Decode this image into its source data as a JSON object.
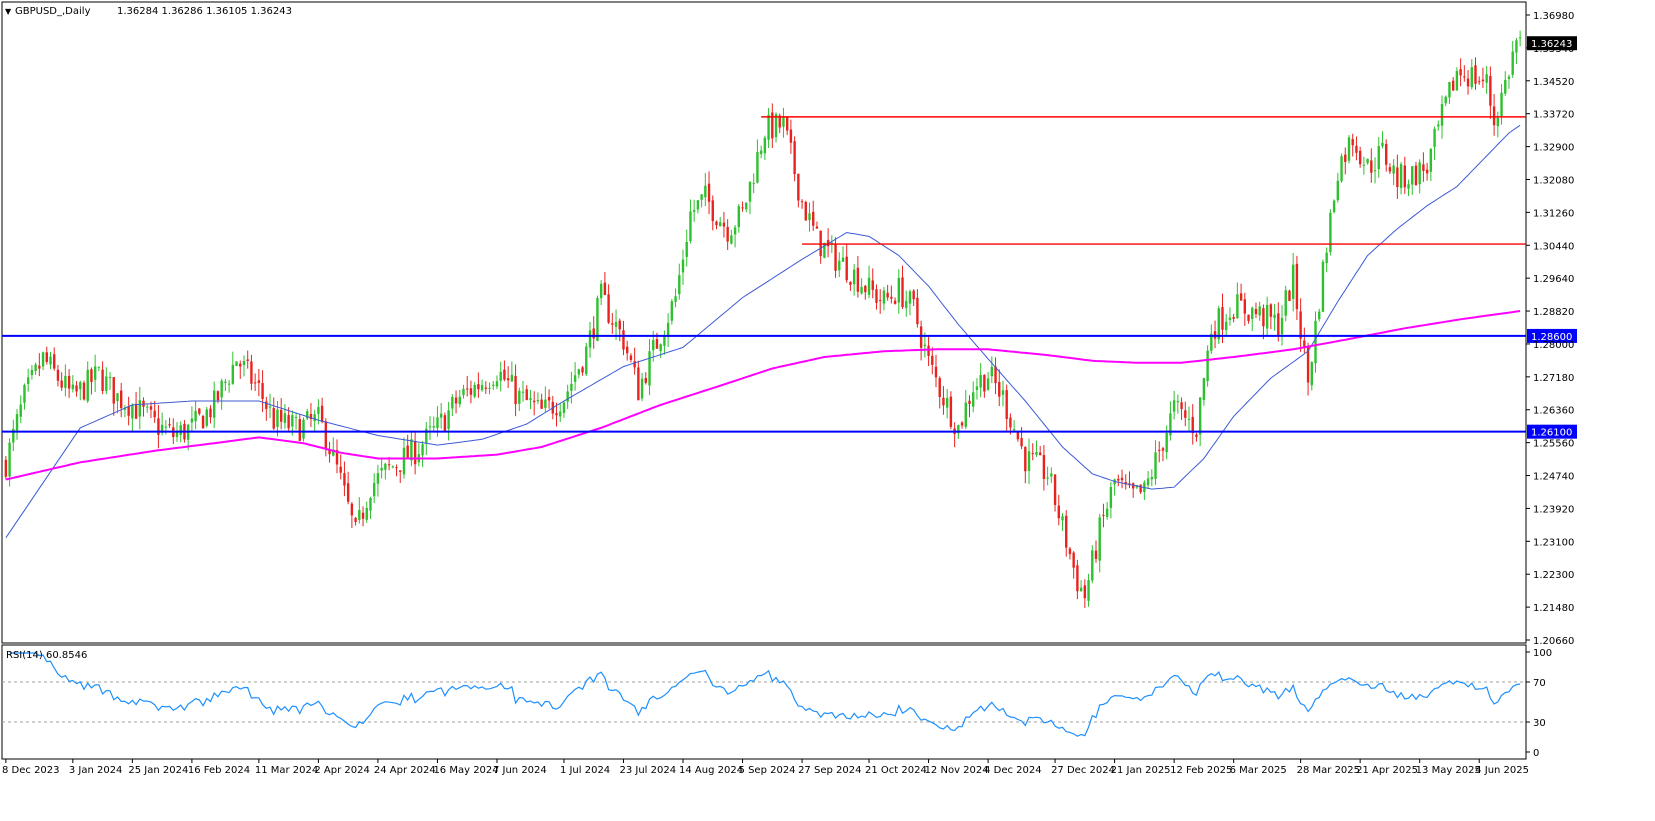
{
  "header": {
    "symbol_title": "GBPUSD_,Daily",
    "ohlc": "1.36284 1.36286 1.36105 1.36243",
    "rsi_title": "RSI(14) 60.8546"
  },
  "colors": {
    "bull": "#2ec02e",
    "bear": "#e8231f",
    "ma_fast": "#3d5ad6",
    "ma_slow": "#ff00ff",
    "resistance": "#ff0000",
    "support": "#0000ff",
    "rsi": "#1e90ff",
    "tag_bg": "#0000ff",
    "price_tag_bg": "#000000"
  },
  "chart_data": [
    {
      "type": "candlestick",
      "title": "GBPUSD_,Daily",
      "ylim": [
        1.2066,
        1.3698
      ],
      "y_ticks": [
        "1.36980",
        "1.35340",
        "1.34520",
        "1.33720",
        "1.32900",
        "1.32080",
        "1.31260",
        "1.30440",
        "1.29640",
        "1.28820",
        "1.28000",
        "1.27180",
        "1.26360",
        "1.25560",
        "1.24740",
        "1.23920",
        "1.23100",
        "1.22300",
        "1.21480",
        "1.20660"
      ],
      "x_ticks": [
        "8 Dec 2023",
        "3 Jan 2024",
        "25 Jan 2024",
        "16 Feb 2024",
        "11 Mar 2024",
        "2 Apr 2024",
        "24 Apr 2024",
        "16 May 2024",
        "7 Jun 2024",
        "1 Jul 2024",
        "23 Jul 2024",
        "14 Aug 2024",
        "5 Sep 2024",
        "27 Sep 2024",
        "21 Oct 2024",
        "12 Nov 2024",
        "4 Dec 2024",
        "27 Dec 2024",
        "21 Jan 2025",
        "12 Feb 2025",
        "6 Mar 2025",
        "28 Mar 2025",
        "21 Apr 2025",
        "13 May 2025",
        "4 Jun 2025"
      ],
      "x_ticks_bar_index": [
        0,
        18,
        34,
        50,
        68,
        84,
        100,
        116,
        132,
        150,
        166,
        182,
        198,
        214,
        232,
        248,
        264,
        282,
        298,
        314,
        330,
        348,
        364,
        380,
        396
      ],
      "bars_total": 408,
      "price_path": [
        [
          0,
          1.253
        ],
        [
          5,
          1.27
        ],
        [
          10,
          1.28
        ],
        [
          18,
          1.27
        ],
        [
          25,
          1.276
        ],
        [
          30,
          1.27
        ],
        [
          34,
          1.268
        ],
        [
          40,
          1.263
        ],
        [
          45,
          1.26
        ],
        [
          50,
          1.262
        ],
        [
          56,
          1.268
        ],
        [
          62,
          1.28
        ],
        [
          68,
          1.272
        ],
        [
          72,
          1.264
        ],
        [
          78,
          1.262
        ],
        [
          84,
          1.264
        ],
        [
          86,
          1.26
        ],
        [
          90,
          1.248
        ],
        [
          94,
          1.234
        ],
        [
          98,
          1.247
        ],
        [
          104,
          1.252
        ],
        [
          110,
          1.256
        ],
        [
          116,
          1.262
        ],
        [
          122,
          1.27
        ],
        [
          128,
          1.274
        ],
        [
          132,
          1.277
        ],
        [
          138,
          1.27
        ],
        [
          144,
          1.266
        ],
        [
          150,
          1.27
        ],
        [
          156,
          1.282
        ],
        [
          160,
          1.296
        ],
        [
          166,
          1.285
        ],
        [
          170,
          1.272
        ],
        [
          174,
          1.282
        ],
        [
          180,
          1.296
        ],
        [
          184,
          1.318
        ],
        [
          188,
          1.322
        ],
        [
          194,
          1.314
        ],
        [
          198,
          1.318
        ],
        [
          204,
          1.34
        ],
        [
          209,
          1.341
        ],
        [
          214,
          1.321
        ],
        [
          218,
          1.311
        ],
        [
          222,
          1.307
        ],
        [
          226,
          1.304
        ],
        [
          232,
          1.298
        ],
        [
          236,
          1.295
        ],
        [
          240,
          1.298
        ],
        [
          244,
          1.293
        ],
        [
          248,
          1.279
        ],
        [
          252,
          1.27
        ],
        [
          256,
          1.262
        ],
        [
          260,
          1.273
        ],
        [
          264,
          1.276
        ],
        [
          268,
          1.27
        ],
        [
          274,
          1.254
        ],
        [
          280,
          1.25
        ],
        [
          284,
          1.236
        ],
        [
          288,
          1.222
        ],
        [
          290,
          1.218
        ],
        [
          294,
          1.235
        ],
        [
          298,
          1.248
        ],
        [
          302,
          1.244
        ],
        [
          306,
          1.245
        ],
        [
          310,
          1.256
        ],
        [
          314,
          1.267
        ],
        [
          320,
          1.262
        ],
        [
          324,
          1.288
        ],
        [
          330,
          1.294
        ],
        [
          336,
          1.292
        ],
        [
          342,
          1.289
        ],
        [
          346,
          1.301
        ],
        [
          350,
          1.274
        ],
        [
          354,
          1.303
        ],
        [
          358,
          1.33
        ],
        [
          362,
          1.338
        ],
        [
          366,
          1.33
        ],
        [
          370,
          1.334
        ],
        [
          374,
          1.327
        ],
        [
          378,
          1.328
        ],
        [
          382,
          1.33
        ],
        [
          386,
          1.343
        ],
        [
          390,
          1.355
        ],
        [
          394,
          1.354
        ],
        [
          398,
          1.352
        ],
        [
          400,
          1.342
        ],
        [
          403,
          1.352
        ],
        [
          406,
          1.3628
        ],
        [
          407,
          1.3624
        ]
      ],
      "ma_fast": [
        [
          0,
          1.2333
        ],
        [
          20,
          1.262
        ],
        [
          34,
          1.268
        ],
        [
          50,
          1.269
        ],
        [
          68,
          1.269
        ],
        [
          84,
          1.264
        ],
        [
          100,
          1.26
        ],
        [
          116,
          1.2575
        ],
        [
          128,
          1.259
        ],
        [
          140,
          1.263
        ],
        [
          150,
          1.269
        ],
        [
          166,
          1.278
        ],
        [
          182,
          1.283
        ],
        [
          198,
          1.296
        ],
        [
          214,
          1.306
        ],
        [
          226,
          1.313
        ],
        [
          232,
          1.312
        ],
        [
          240,
          1.307
        ],
        [
          248,
          1.299
        ],
        [
          256,
          1.289
        ],
        [
          264,
          1.28
        ],
        [
          274,
          1.269
        ],
        [
          284,
          1.257
        ],
        [
          292,
          1.25
        ],
        [
          298,
          1.248
        ],
        [
          308,
          1.246
        ],
        [
          314,
          1.2465
        ],
        [
          322,
          1.254
        ],
        [
          330,
          1.265
        ],
        [
          340,
          1.275
        ],
        [
          350,
          1.282
        ],
        [
          358,
          1.295
        ],
        [
          366,
          1.307
        ],
        [
          374,
          1.314
        ],
        [
          382,
          1.32
        ],
        [
          390,
          1.325
        ],
        [
          398,
          1.333
        ],
        [
          404,
          1.339
        ],
        [
          407,
          1.341
        ]
      ],
      "ma_slow": [
        [
          0,
          1.2485
        ],
        [
          20,
          1.253
        ],
        [
          40,
          1.256
        ],
        [
          60,
          1.2585
        ],
        [
          68,
          1.2595
        ],
        [
          80,
          1.258
        ],
        [
          90,
          1.2555
        ],
        [
          100,
          1.254
        ],
        [
          116,
          1.254
        ],
        [
          132,
          1.255
        ],
        [
          144,
          1.257
        ],
        [
          160,
          1.262
        ],
        [
          176,
          1.268
        ],
        [
          192,
          1.273
        ],
        [
          206,
          1.2775
        ],
        [
          220,
          1.2805
        ],
        [
          236,
          1.282
        ],
        [
          250,
          1.2825
        ],
        [
          264,
          1.2825
        ],
        [
          280,
          1.281
        ],
        [
          292,
          1.2795
        ],
        [
          304,
          1.279
        ],
        [
          316,
          1.279
        ],
        [
          330,
          1.2805
        ],
        [
          346,
          1.2825
        ],
        [
          360,
          1.285
        ],
        [
          376,
          1.288
        ],
        [
          392,
          1.2905
        ],
        [
          407,
          1.2925
        ]
      ],
      "resistance_lines": [
        {
          "value": 1.3432,
          "from_bar": 203,
          "to_bar": 408
        },
        {
          "value": 1.31,
          "from_bar": 214,
          "to_bar": 408
        }
      ],
      "support_lines": [
        {
          "value": 1.286,
          "label": "1.28600"
        },
        {
          "value": 1.261,
          "label": "1.26100"
        }
      ],
      "last_price": {
        "value": 1.36243,
        "label": "1.36243"
      }
    },
    {
      "type": "line",
      "title": "RSI(14) 60.8546",
      "ylim": [
        0,
        100
      ],
      "y_ticks": [
        "100",
        "70",
        "30",
        "0"
      ],
      "levels": [
        70,
        30
      ],
      "last_value": 60.8546
    }
  ]
}
